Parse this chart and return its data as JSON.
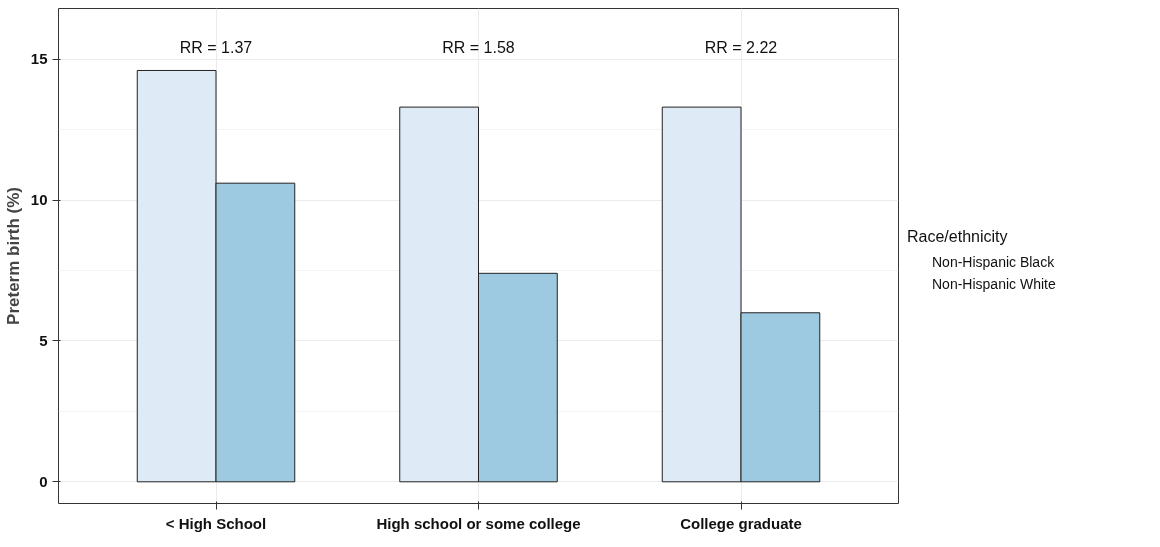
{
  "chart_data": {
    "type": "bar",
    "ylabel": "Preterm birth (%)",
    "legend_title": "Race/ethnicity",
    "categories": [
      "< High School",
      "High school or some college",
      "College graduate"
    ],
    "series": [
      {
        "name": "Non-Hispanic Black",
        "color": "#deebf7",
        "values": [
          14.6,
          13.3,
          13.3
        ]
      },
      {
        "name": "Non-Hispanic White",
        "color": "#9ecae1",
        "values": [
          10.6,
          7.4,
          6.0
        ]
      }
    ],
    "annotations": [
      "RR = 1.37",
      "RR = 1.58",
      "RR = 2.22"
    ],
    "ylim": [
      -0.77,
      16.8
    ],
    "yticks": [
      0,
      5,
      10,
      15
    ],
    "grid": true,
    "legend": "right"
  }
}
